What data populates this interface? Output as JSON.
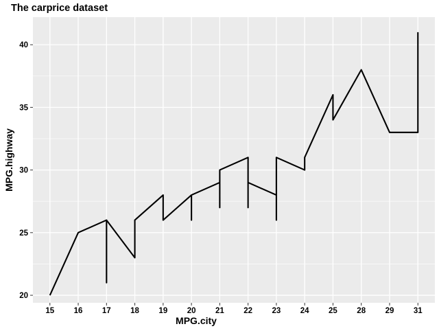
{
  "chart_data": {
    "type": "line",
    "title": "The carprice dataset",
    "xlabel": "MPG.city",
    "ylabel": "MPG.highway",
    "x_scale": "categorical",
    "categories": [
      "15",
      "16",
      "17",
      "18",
      "19",
      "20",
      "21",
      "22",
      "23",
      "24",
      "25",
      "28",
      "29",
      "31"
    ],
    "ylim": [
      19.4,
      42.2
    ],
    "yticks": [
      20,
      25,
      30,
      35,
      40
    ],
    "grid": true,
    "legend": "none",
    "colors": {
      "panel_background": "#ebebeb",
      "grid": "#ffffff",
      "line": "#000000",
      "text": "#000000"
    },
    "series": [
      {
        "x": [
          "15",
          "16",
          "17",
          "17",
          "17",
          "18",
          "18",
          "19",
          "19",
          "20",
          "20",
          "20",
          "21",
          "21",
          "21",
          "22",
          "22",
          "22",
          "23",
          "23",
          "23",
          "24",
          "24",
          "25",
          "25",
          "28",
          "29",
          "31",
          "31"
        ],
        "y": [
          20,
          25,
          26,
          21,
          26,
          23,
          26,
          28,
          26,
          28,
          26,
          28,
          29,
          27,
          30,
          31,
          27,
          29,
          28,
          26,
          31,
          30,
          31,
          36,
          34,
          38,
          33,
          33,
          41
        ]
      }
    ]
  }
}
